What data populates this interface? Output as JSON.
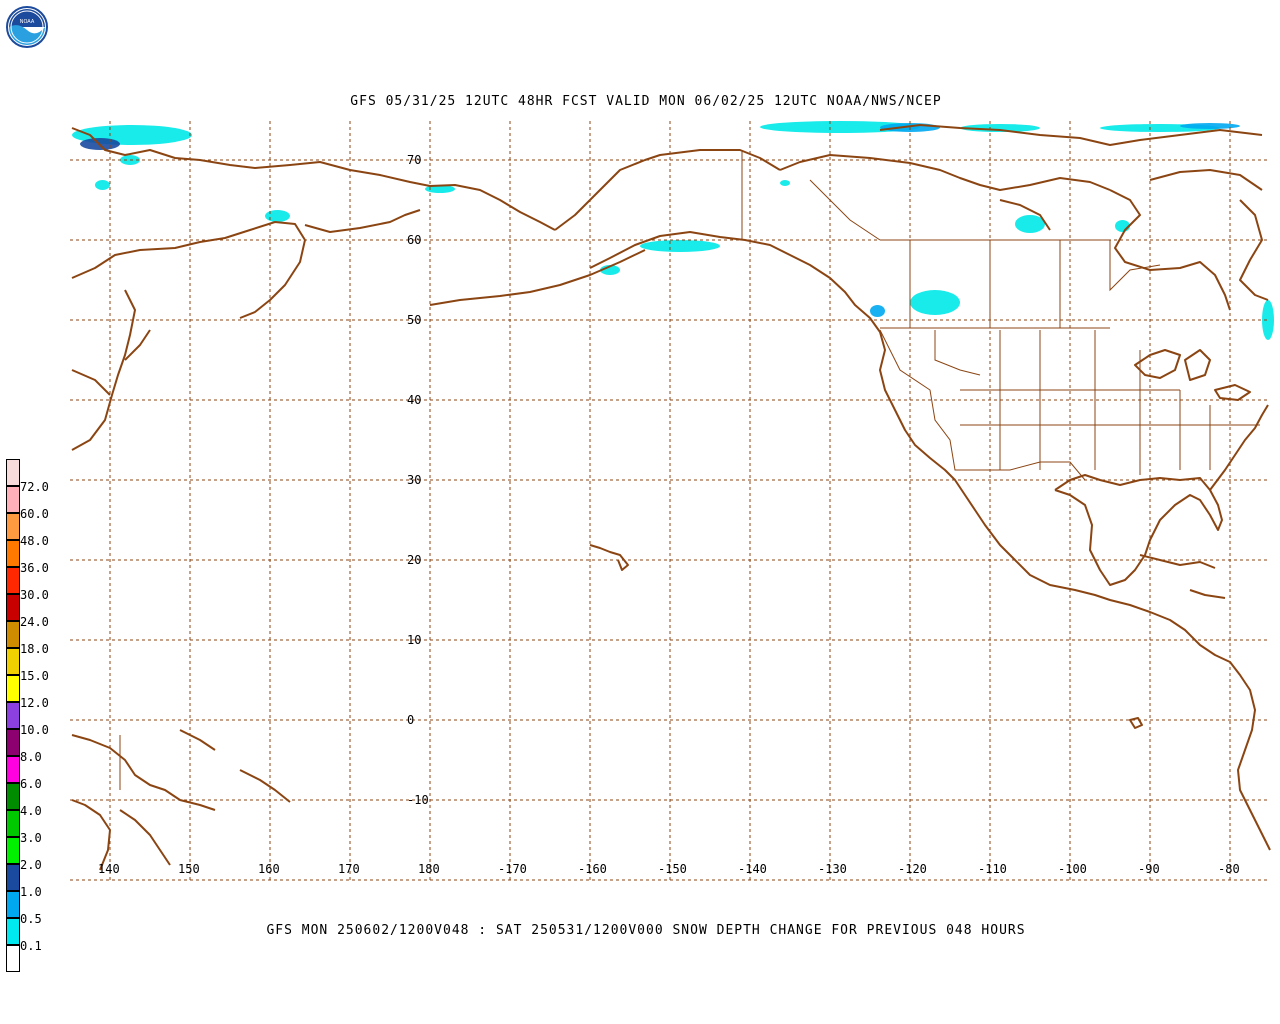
{
  "logo_text": "NOAA",
  "title_top": "GFS 05/31/25 12UTC 48HR FCST VALID MON 06/02/25 12UTC NOAA/NWS/NCEP",
  "title_bottom": "GFS MON 250602/1200V048 : SAT 250531/1200V000 SNOW DEPTH CHANGE FOR PREVIOUS 048 HOURS",
  "colors": {
    "coast": "#8b4513",
    "grid": "#8b4513",
    "snow_light": "#00e8e8",
    "snow_mid": "#00a8f0",
    "snow_dark": "#1a4aa0"
  },
  "map": {
    "lat_labels": [
      "70",
      "60",
      "50",
      "40",
      "30",
      "20",
      "10",
      "0",
      "-10"
    ],
    "lon_labels": [
      "140",
      "150",
      "160",
      "170",
      "180",
      "-170",
      "-160",
      "-150",
      "-140",
      "-130",
      "-120",
      "-110",
      "-100",
      "-90",
      "-80"
    ]
  },
  "colorbar": [
    {
      "label": "",
      "color": "#ffffff"
    },
    {
      "label": "0.1",
      "color": "#00e8f0"
    },
    {
      "label": "0.5",
      "color": "#00a8f0"
    },
    {
      "label": "1.0",
      "color": "#1a4aa0"
    },
    {
      "label": "2.0",
      "color": "#00f000"
    },
    {
      "label": "3.0",
      "color": "#00c800"
    },
    {
      "label": "4.0",
      "color": "#008c00"
    },
    {
      "label": "6.0",
      "color": "#ff00e0"
    },
    {
      "label": "8.0",
      "color": "#8c0070"
    },
    {
      "label": "10.0",
      "color": "#8c40e0"
    },
    {
      "label": "12.0",
      "color": "#ffff00"
    },
    {
      "label": "15.0",
      "color": "#f0d000"
    },
    {
      "label": "18.0",
      "color": "#d08c00"
    },
    {
      "label": "24.0",
      "color": "#c80000"
    },
    {
      "label": "30.0",
      "color": "#ff2800"
    },
    {
      "label": "36.0",
      "color": "#ff7800"
    },
    {
      "label": "48.0",
      "color": "#ff9a40"
    },
    {
      "label": "60.0",
      "color": "#ffb0b8"
    },
    {
      "label": "72.0",
      "color": "#f8dcdc"
    }
  ]
}
